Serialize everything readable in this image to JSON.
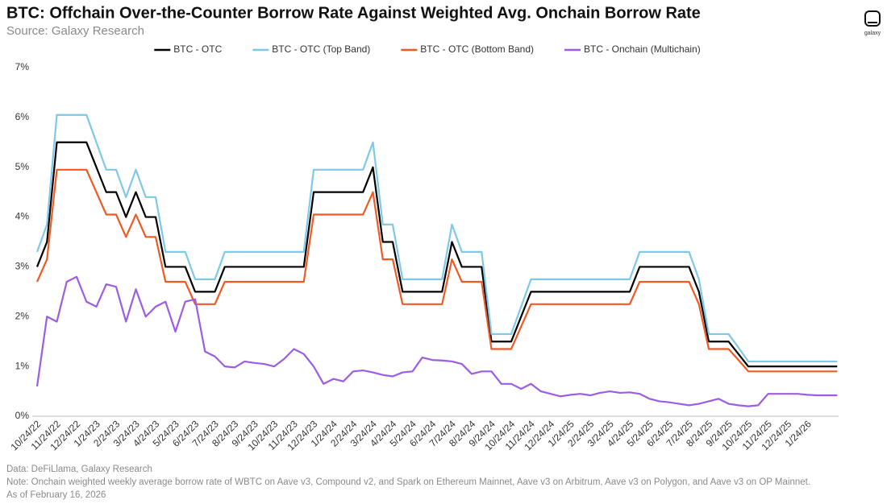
{
  "chart_data": {
    "type": "line",
    "title": "BTC: Offchain Over-the-Counter Borrow Rate Against Weighted Avg. Onchain Borrow Rate",
    "subtitle": "Source: Galaxy Research",
    "logo_text": "galaxy",
    "footnotes": [
      "Data: DeFiLlama, Galaxy Research",
      "Note: Onchain weighted weekly average borrow rate of WBTC on Aave v3, Compound v2, and Spark on Ethereum Mainnet, Aave v3 on Arbitrum, Aave v3 on Polygon, and Aave v3 on OP Mainnet.",
      "As of February 16, 2026"
    ],
    "categories": [
      "10/24/22",
      null,
      "11/24/22",
      null,
      "12/24/22",
      null,
      "1/24/23",
      null,
      "2/24/23",
      null,
      "3/24/23",
      null,
      "4/24/23",
      null,
      "5/24/23",
      null,
      "6/24/23",
      null,
      "7/24/23",
      null,
      "8/24/23",
      null,
      "9/24/23",
      null,
      "10/24/23",
      null,
      "11/24/23",
      null,
      "12/24/23",
      null,
      "1/24/24",
      null,
      "2/24/24",
      null,
      "3/24/24",
      null,
      "4/24/24",
      null,
      "5/24/24",
      null,
      "6/24/24",
      null,
      "7/24/24",
      null,
      "8/24/24",
      null,
      "9/24/24",
      null,
      "10/24/24",
      null,
      "11/24/24",
      null,
      "12/24/24",
      null,
      "1/24/25",
      null,
      "2/24/25",
      null,
      "3/24/25",
      null,
      "4/24/25",
      null,
      "5/24/25",
      null,
      "6/24/25",
      null,
      "7/24/25",
      null,
      "8/24/25",
      null,
      "9/24/25",
      null,
      "10/24/25",
      null,
      "11/24/25",
      null,
      "12/24/25",
      null,
      "1/24/26",
      null,
      null,
      null
    ],
    "series": [
      {
        "name": "BTC - OTC",
        "color": "#000000",
        "values": [
          3,
          3.5,
          5.5,
          5.5,
          5.5,
          5.5,
          5,
          4.5,
          4.5,
          4,
          4.5,
          4,
          4,
          3,
          3,
          3,
          2.5,
          2.5,
          2.5,
          3,
          3,
          3,
          3,
          3,
          3,
          3,
          3,
          3,
          4.5,
          4.5,
          4.5,
          4.5,
          4.5,
          4.5,
          5,
          3.5,
          3.5,
          2.5,
          2.5,
          2.5,
          2.5,
          2.5,
          3.5,
          3,
          3,
          3,
          1.5,
          1.5,
          1.5,
          2,
          2.5,
          2.5,
          2.5,
          2.5,
          2.5,
          2.5,
          2.5,
          2.5,
          2.5,
          2.5,
          2.5,
          3,
          3,
          3,
          3,
          3,
          3,
          2.5,
          1.5,
          1.5,
          1.5,
          1.25,
          1,
          1,
          1,
          1,
          1,
          1,
          1,
          1,
          1,
          1
        ]
      },
      {
        "name": "BTC - OTC (Top Band)",
        "color": "#7ec8e8",
        "values": [
          3.3,
          3.85,
          6.05,
          6.05,
          6.05,
          6.05,
          5.5,
          4.95,
          4.95,
          4.4,
          4.95,
          4.4,
          4.4,
          3.3,
          3.3,
          3.3,
          2.75,
          2.75,
          2.75,
          3.3,
          3.3,
          3.3,
          3.3,
          3.3,
          3.3,
          3.3,
          3.3,
          3.3,
          4.95,
          4.95,
          4.95,
          4.95,
          4.95,
          4.95,
          5.5,
          3.85,
          3.85,
          2.75,
          2.75,
          2.75,
          2.75,
          2.75,
          3.85,
          3.3,
          3.3,
          3.3,
          1.65,
          1.65,
          1.65,
          2.2,
          2.75,
          2.75,
          2.75,
          2.75,
          2.75,
          2.75,
          2.75,
          2.75,
          2.75,
          2.75,
          2.75,
          3.3,
          3.3,
          3.3,
          3.3,
          3.3,
          3.3,
          2.75,
          1.65,
          1.65,
          1.65,
          1.38,
          1.1,
          1.1,
          1.1,
          1.1,
          1.1,
          1.1,
          1.1,
          1.1,
          1.1,
          1.1
        ]
      },
      {
        "name": "BTC - OTC (Bottom Band)",
        "color": "#f05a22",
        "values": [
          2.7,
          3.15,
          4.95,
          4.95,
          4.95,
          4.95,
          4.5,
          4.05,
          4.05,
          3.6,
          4.05,
          3.6,
          3.6,
          2.7,
          2.7,
          2.7,
          2.25,
          2.25,
          2.25,
          2.7,
          2.7,
          2.7,
          2.7,
          2.7,
          2.7,
          2.7,
          2.7,
          2.7,
          4.05,
          4.05,
          4.05,
          4.05,
          4.05,
          4.05,
          4.5,
          3.15,
          3.15,
          2.25,
          2.25,
          2.25,
          2.25,
          2.25,
          3.15,
          2.7,
          2.7,
          2.7,
          1.35,
          1.35,
          1.35,
          1.8,
          2.25,
          2.25,
          2.25,
          2.25,
          2.25,
          2.25,
          2.25,
          2.25,
          2.25,
          2.25,
          2.25,
          2.7,
          2.7,
          2.7,
          2.7,
          2.7,
          2.7,
          2.25,
          1.35,
          1.35,
          1.35,
          1.13,
          0.9,
          0.9,
          0.9,
          0.9,
          0.9,
          0.9,
          0.9,
          0.9,
          0.9,
          0.9
        ]
      },
      {
        "name": "BTC - Onchain (Multichain)",
        "color": "#9b5de5",
        "values": [
          0.6,
          2,
          1.9,
          2.7,
          2.8,
          2.3,
          2.2,
          2.65,
          2.6,
          1.9,
          2.55,
          2,
          2.2,
          2.3,
          1.7,
          2.3,
          2.35,
          1.3,
          1.2,
          1,
          0.98,
          1.1,
          1.07,
          1.05,
          1,
          1.15,
          1.35,
          1.25,
          1,
          0.65,
          0.75,
          0.7,
          0.9,
          0.92,
          0.88,
          0.83,
          0.8,
          0.88,
          0.9,
          1.18,
          1.13,
          1.12,
          1.1,
          1.05,
          0.85,
          0.9,
          0.9,
          0.65,
          0.65,
          0.55,
          0.65,
          0.5,
          0.45,
          0.4,
          0.43,
          0.45,
          0.42,
          0.47,
          0.5,
          0.47,
          0.48,
          0.45,
          0.35,
          0.3,
          0.28,
          0.25,
          0.22,
          0.25,
          0.3,
          0.35,
          0.25,
          0.22,
          0.2,
          0.22,
          0.45,
          0.45,
          0.45,
          0.45,
          0.43,
          0.42,
          0.42,
          0.42
        ]
      }
    ],
    "ylim": [
      0,
      7
    ],
    "yticks": [
      {
        "value": 0,
        "label": "0%"
      },
      {
        "value": 1,
        "label": "1%"
      },
      {
        "value": 2,
        "label": "2%"
      },
      {
        "value": 3,
        "label": "3%"
      },
      {
        "value": 4,
        "label": "4%"
      },
      {
        "value": 5,
        "label": "5%"
      },
      {
        "value": 6,
        "label": "6%"
      },
      {
        "value": 7,
        "label": "7%"
      }
    ],
    "grid": false,
    "legend": "top"
  }
}
